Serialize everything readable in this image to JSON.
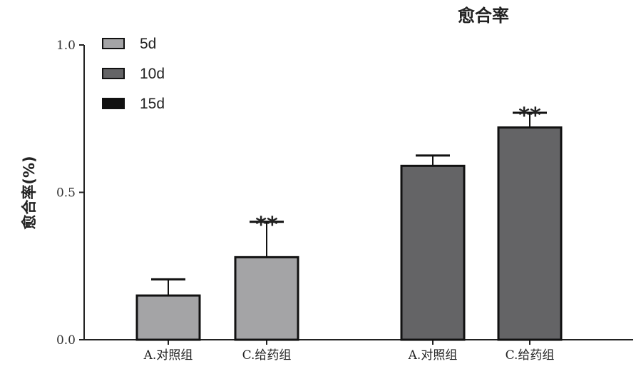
{
  "chart_data": {
    "type": "bar",
    "title": "愈合率",
    "ylabel": "愈合率(%)",
    "xlabel": "",
    "ylim": [
      0,
      1.0
    ],
    "yticks": [
      "0.0",
      "0.5",
      "1.0"
    ],
    "grid": false,
    "legend_position": "top-left",
    "legend": [
      {
        "name": "5d",
        "color": "#a4a4a6"
      },
      {
        "name": "10d",
        "color": "#646466"
      },
      {
        "name": "15d",
        "color": "#111111"
      }
    ],
    "bars": [
      {
        "category": "A.对照组",
        "series": "5d",
        "value": 0.15,
        "error": 0.055,
        "annotation": ""
      },
      {
        "category": "C.给药组",
        "series": "5d",
        "value": 0.28,
        "error": 0.12,
        "annotation": "**"
      },
      {
        "category": "A.对照组",
        "series": "10d",
        "value": 0.59,
        "error": 0.035,
        "annotation": ""
      },
      {
        "category": "C.给药组",
        "series": "10d",
        "value": 0.72,
        "error": 0.05,
        "annotation": "**"
      }
    ]
  }
}
